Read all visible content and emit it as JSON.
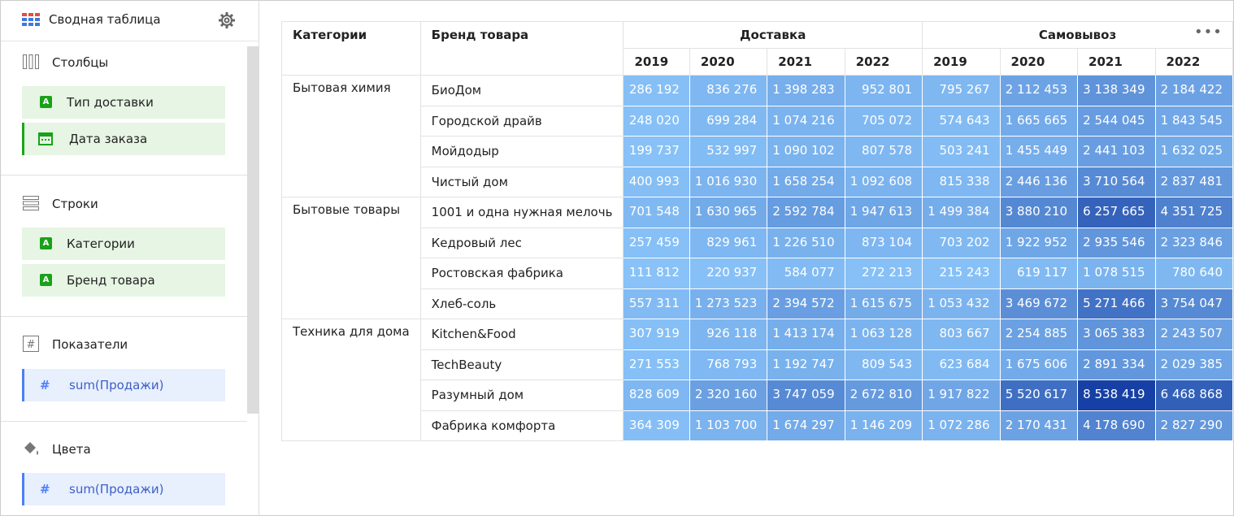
{
  "sidebar": {
    "title": "Сводная таблица",
    "sections": [
      {
        "label": "Столбцы",
        "items": [
          "Тип доставки",
          "Дата заказа"
        ]
      },
      {
        "label": "Строки",
        "items": [
          "Категории",
          "Бренд товара"
        ]
      },
      {
        "label": "Показатели",
        "items": [
          "sum(Продажи)"
        ]
      },
      {
        "label": "Цвета",
        "items": [
          "sum(Продажи)"
        ]
      }
    ]
  },
  "table": {
    "header": {
      "category": "Категории",
      "brand": "Бренд товара",
      "groups": [
        "Доставка",
        "Самовывоз"
      ],
      "years": [
        "2019",
        "2020",
        "2021",
        "2022",
        "2019",
        "2020",
        "2021",
        "2022"
      ]
    },
    "groups": [
      {
        "category": "Бытовая химия",
        "rows": [
          {
            "brand": "БиоДом",
            "cells": [
              "286 192",
              "836 276",
              "1 398 283",
              "952 801",
              "795 267",
              "2 112 453",
              "3 138 349",
              "2 184 422"
            ]
          },
          {
            "brand": "Городской драйв",
            "cells": [
              "248 020",
              "699 284",
              "1 074 216",
              "705 072",
              "574 643",
              "1 665 665",
              "2 544 045",
              "1 843 545"
            ]
          },
          {
            "brand": "Мойдодыр",
            "cells": [
              "199 737",
              "532 997",
              "1 090 102",
              "807 578",
              "503 241",
              "1 455 449",
              "2 441 103",
              "1 632 025"
            ]
          },
          {
            "brand": "Чистый дом",
            "cells": [
              "400 993",
              "1 016 930",
              "1 658 254",
              "1 092 608",
              "815 338",
              "2 446 136",
              "3 710 564",
              "2 837 481"
            ]
          }
        ]
      },
      {
        "category": "Бытовые товары",
        "rows": [
          {
            "brand": "1001 и одна нужная мелочь",
            "cells": [
              "701 548",
              "1 630 965",
              "2 592 784",
              "1 947 613",
              "1 499 384",
              "3 880 210",
              "6 257 665",
              "4 351 725"
            ]
          },
          {
            "brand": "Кедровый лес",
            "cells": [
              "257 459",
              "829 961",
              "1 226 510",
              "873 104",
              "703 202",
              "1 922 952",
              "2 935 546",
              "2 323 846"
            ]
          },
          {
            "brand": "Ростовская фабрика",
            "cells": [
              "111 812",
              "220 937",
              "584 077",
              "272 213",
              "215 243",
              "619 117",
              "1 078 515",
              "780 640"
            ]
          },
          {
            "brand": "Хлеб-соль",
            "cells": [
              "557 311",
              "1 273 523",
              "2 394 572",
              "1 615 675",
              "1 053 432",
              "3 469 672",
              "5 271 466",
              "3 754 047"
            ]
          }
        ]
      },
      {
        "category": "Техника для дома",
        "rows": [
          {
            "brand": "Kitchen&Food",
            "cells": [
              "307 919",
              "926 118",
              "1 413 174",
              "1 063 128",
              "803 667",
              "2 254 885",
              "3 065 383",
              "2 243 507"
            ]
          },
          {
            "brand": "TechBeauty",
            "cells": [
              "271 553",
              "768 793",
              "1 192 747",
              "809 543",
              "623 684",
              "1 675 606",
              "2 891 334",
              "2 029 385"
            ]
          },
          {
            "brand": "Разумный дом",
            "cells": [
              "828 609",
              "2 320 160",
              "3 747 059",
              "2 672 810",
              "1 917 822",
              "5 520 617",
              "8 538 419",
              "6 468 868"
            ]
          },
          {
            "brand": "Фабрика комфорта",
            "cells": [
              "364 309",
              "1 103 700",
              "1 674 297",
              "1 146 209",
              "1 072 286",
              "2 170 431",
              "4 178 690",
              "2 827 290"
            ]
          }
        ]
      }
    ]
  }
}
